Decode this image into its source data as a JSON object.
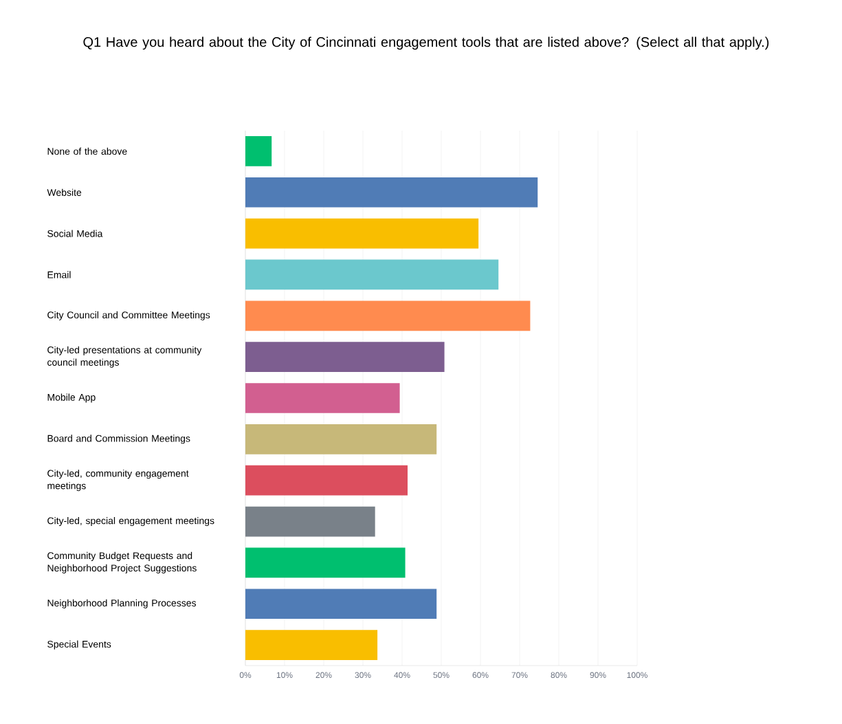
{
  "chart_data": {
    "type": "bar",
    "orientation": "horizontal",
    "title": "Q1 Have you heard about the City of Cincinnati engagement tools that are listed above? (Select all that apply.)",
    "categories": [
      "None of the above",
      "Website",
      "Social Media",
      "Email",
      "City Council and Committee Meetings",
      "City-led presentations at community council meetings",
      "Mobile App",
      "Board and Commission Meetings",
      "City-led, community engagement meetings",
      "City-led, special engagement meetings",
      "Community Budget Requests and Neighborhood Project Suggestions",
      "Neighborhood Planning Processes",
      "Special Events"
    ],
    "values": [
      6.7,
      74.6,
      59.5,
      64.6,
      72.7,
      50.8,
      39.4,
      48.8,
      41.4,
      33.1,
      40.8,
      48.8,
      33.7
    ],
    "colors": [
      "#00bf6f",
      "#507cb6",
      "#f9be00",
      "#6bc8cd",
      "#ff8b4f",
      "#7d5e90",
      "#d25f90",
      "#c7b879",
      "#dc4e5e",
      "#798189",
      "#00bf6f",
      "#507cb6",
      "#f9be00"
    ],
    "xlim": [
      0,
      100
    ],
    "xticks": [
      {
        "value": 0,
        "label": "0%"
      },
      {
        "value": 10,
        "label": "10%"
      },
      {
        "value": 20,
        "label": "20%"
      },
      {
        "value": 30,
        "label": "30%"
      },
      {
        "value": 40,
        "label": "40%"
      },
      {
        "value": 50,
        "label": "50%"
      },
      {
        "value": 60,
        "label": "60%"
      },
      {
        "value": 70,
        "label": "70%"
      },
      {
        "value": 80,
        "label": "80%"
      },
      {
        "value": 90,
        "label": "90%"
      },
      {
        "value": 100,
        "label": "100%"
      }
    ],
    "grid": "x"
  }
}
